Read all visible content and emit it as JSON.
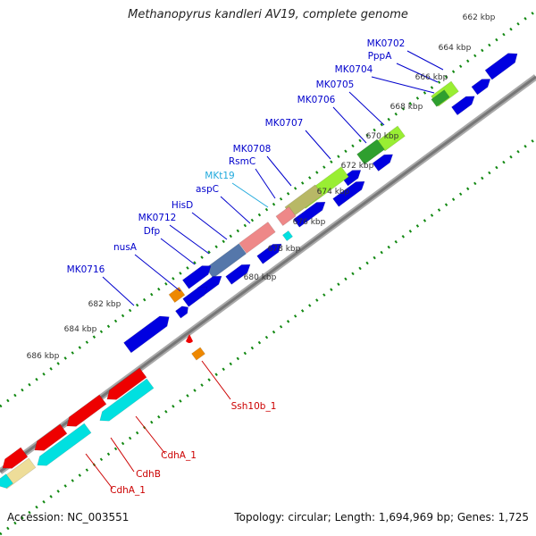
{
  "title": "Methanopyrus kandleri AV19, complete genome",
  "footer": {
    "accession": "Accession: NC_003551",
    "topology": "Topology: circular; Length: 1,694,969 bp; Genes: 1,725"
  },
  "colors": {
    "blue": "#0000e0",
    "red": "#ee0000",
    "cyan": "#00e0e0",
    "green": "#99ee33",
    "dark_green": "#2f9f2f",
    "olive": "#b8b866",
    "pink": "#ee8888",
    "steel": "#5577aa",
    "orange": "#ee8800",
    "tan": "#eedd99",
    "label_blue": "#0000cc",
    "label_red": "#cc0000",
    "label_cyan": "#22aadd",
    "backbone": "#777777",
    "tick": "#118811"
  },
  "kbp_labels": [
    "662 kbp",
    "664 kbp",
    "666 kbp",
    "668 kbp",
    "670 kbp",
    "672 kbp",
    "674 kbp",
    "676 kbp",
    "678 kbp",
    "680 kbp",
    "682 kbp",
    "684 kbp",
    "686 kbp"
  ],
  "gene_labels": [
    {
      "text": "MK0702",
      "color": "label_blue"
    },
    {
      "text": "PppA",
      "color": "label_blue"
    },
    {
      "text": "MK0704",
      "color": "label_blue"
    },
    {
      "text": "MK0705",
      "color": "label_blue"
    },
    {
      "text": "MK0706",
      "color": "label_blue"
    },
    {
      "text": "MK0707",
      "color": "label_blue"
    },
    {
      "text": "MK0708",
      "color": "label_blue"
    },
    {
      "text": "RsmC",
      "color": "label_blue"
    },
    {
      "text": "MKt19",
      "color": "label_cyan"
    },
    {
      "text": "aspC",
      "color": "label_blue"
    },
    {
      "text": "HisD",
      "color": "label_blue"
    },
    {
      "text": "MK0712",
      "color": "label_blue"
    },
    {
      "text": "Dfp",
      "color": "label_blue"
    },
    {
      "text": "nusA",
      "color": "label_blue"
    },
    {
      "text": "MK0716",
      "color": "label_blue"
    },
    {
      "text": "Ssh10b_1",
      "color": "label_red"
    },
    {
      "text": "CdhA_1",
      "color": "label_red"
    },
    {
      "text": "CdhB",
      "color": "label_red"
    },
    {
      "text": "CdhA_1",
      "color": "label_red"
    }
  ]
}
